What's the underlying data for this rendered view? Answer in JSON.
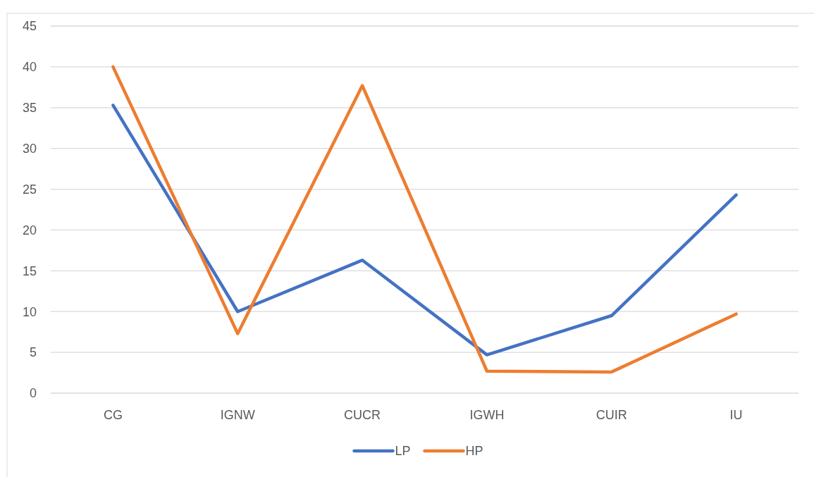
{
  "chart_data": {
    "type": "line",
    "categories": [
      "CG",
      "IGNW",
      "CUCR",
      "IGWH",
      "CUIR",
      "IU"
    ],
    "series": [
      {
        "name": "LP",
        "color": "#4472c4",
        "values": [
          35.3,
          10,
          16.3,
          4.7,
          9.5,
          24.3
        ]
      },
      {
        "name": "HP",
        "color": "#ed7d31",
        "values": [
          40,
          7.3,
          37.7,
          2.7,
          2.6,
          9.7
        ]
      }
    ],
    "ylim": [
      0,
      45
    ],
    "yticks": [
      0,
      5,
      10,
      15,
      20,
      25,
      30,
      35,
      40,
      45
    ],
    "grid": "y",
    "legend": "bottom",
    "marker": "none",
    "line_style": "solid"
  }
}
